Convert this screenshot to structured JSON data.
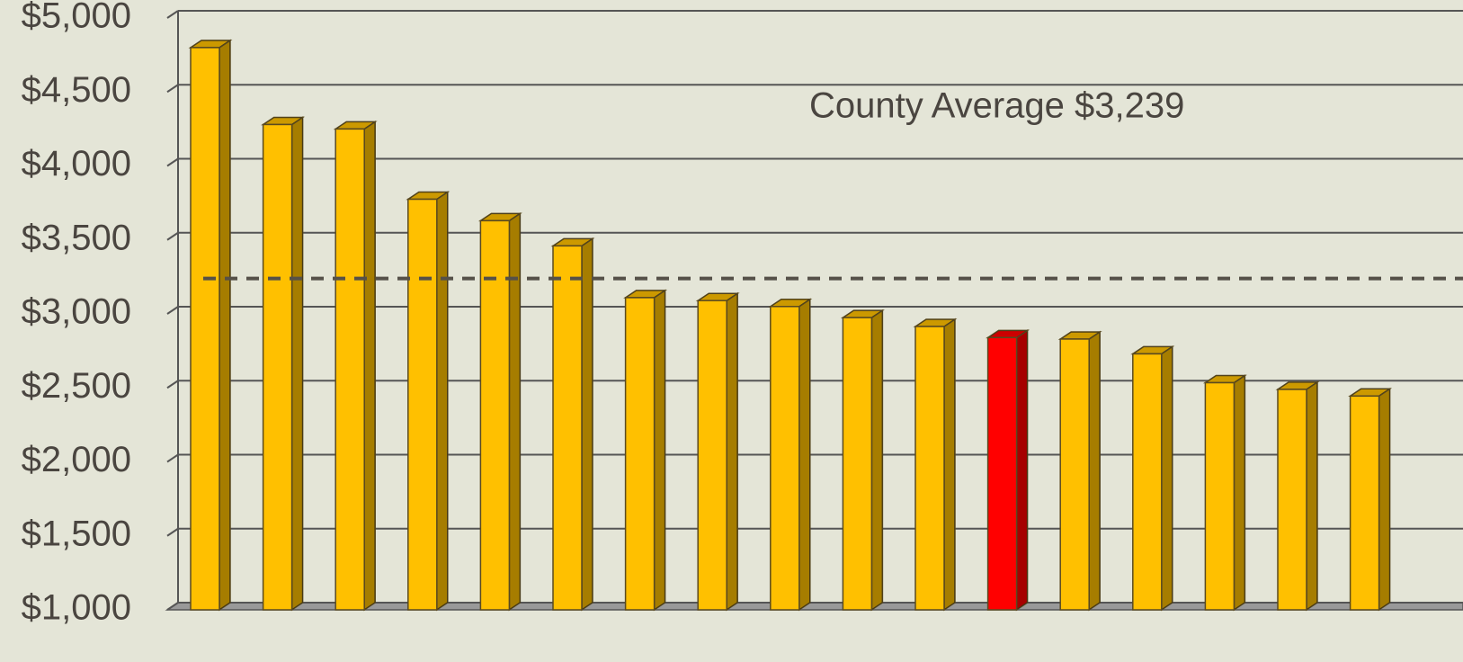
{
  "chart_data": {
    "type": "bar",
    "values": [
      4800,
      4280,
      4250,
      3775,
      3630,
      3460,
      3110,
      3090,
      3050,
      2975,
      2915,
      2840,
      2830,
      2730,
      2535,
      2490,
      2445
    ],
    "colors": [
      "#ffc000",
      "#ffc000",
      "#ffc000",
      "#ffc000",
      "#ffc000",
      "#ffc000",
      "#ffc000",
      "#ffc000",
      "#ffc000",
      "#ffc000",
      "#ffc000",
      "#ff0000",
      "#ffc000",
      "#ffc000",
      "#ffc000",
      "#ffc000",
      "#ffc000"
    ],
    "ylim": [
      1000,
      5000
    ],
    "yticks": [
      {
        "value": 1000,
        "label": "$1,000"
      },
      {
        "value": 1500,
        "label": "$1,500"
      },
      {
        "value": 2000,
        "label": "$2,000"
      },
      {
        "value": 2500,
        "label": "$2,500"
      },
      {
        "value": 3000,
        "label": "$3,000"
      },
      {
        "value": 3500,
        "label": "$3,500"
      },
      {
        "value": 4000,
        "label": "$4,000"
      },
      {
        "value": 4500,
        "label": "$4,500"
      },
      {
        "value": 5000,
        "label": "$5,000"
      }
    ],
    "grid": true,
    "average": {
      "value": 3239,
      "label": "County Average $3,239"
    }
  }
}
